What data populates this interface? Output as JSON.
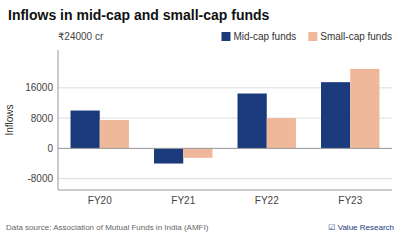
{
  "chart_data": {
    "type": "bar",
    "title": "Inflows in mid-cap and small-cap funds",
    "subtitle": "₹24000 cr",
    "ylabel": "Inflows",
    "categories": [
      "FY20",
      "FY21",
      "FY22",
      "FY23"
    ],
    "series": [
      {
        "name": "Mid-cap funds",
        "color": "#1a3a7c",
        "values": [
          10000,
          -4000,
          14500,
          17500
        ]
      },
      {
        "name": "Small-cap funds",
        "color": "#f0b89a",
        "values": [
          7500,
          -2500,
          8000,
          21000
        ]
      }
    ],
    "ylim": [
      -11000,
      26000
    ],
    "yticks": [
      -8000,
      0,
      8000,
      16000
    ],
    "grid": true,
    "legend": "top-right",
    "annotations": [
      "Data source: Association of Mutual Funds in India (AMFI)",
      "☑ Value Research"
    ]
  }
}
